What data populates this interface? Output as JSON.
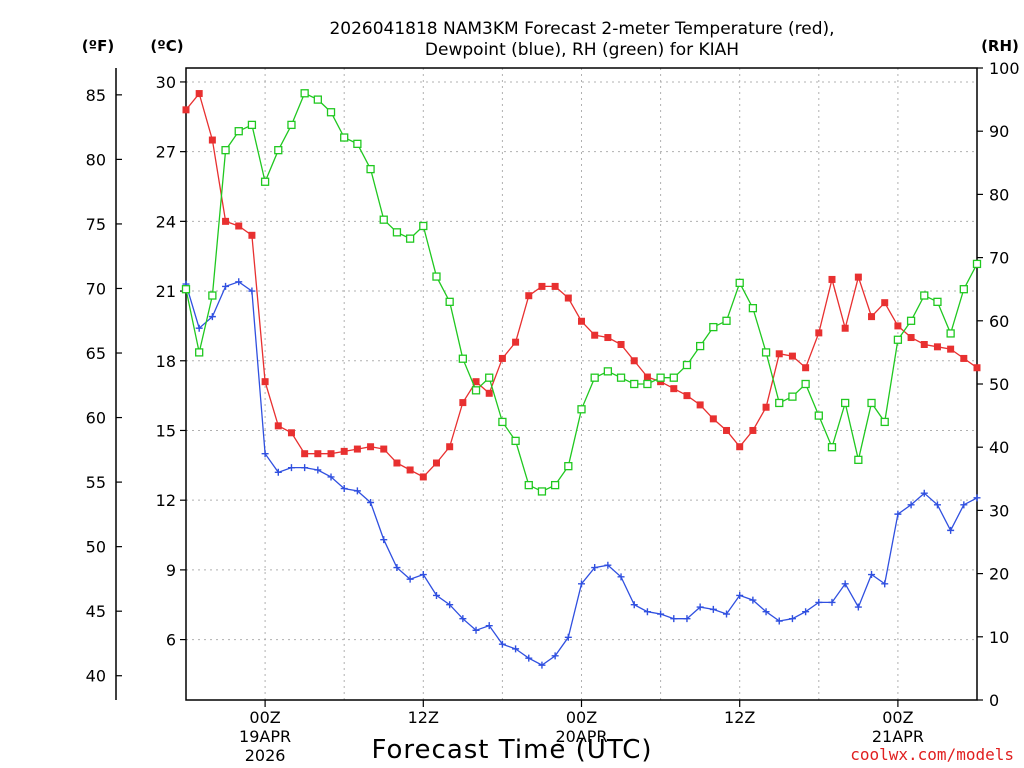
{
  "chart_data": {
    "type": "line",
    "title_line1": "2026041818 NAM3KM Forecast 2-meter Temperature (red),",
    "title_line2": "Dewpoint (blue), RH (green) for KIAH",
    "xlabel": "Forecast Time (UTC)",
    "watermark": "coolwx.com/models",
    "unit_f": "(ºF)",
    "unit_c": "(ºC)",
    "unit_rh": "(RH)",
    "temp_c_range": [
      3.4,
      30.6
    ],
    "rh_range": [
      0,
      100
    ],
    "x_range_hours": [
      0,
      60
    ],
    "c_ticks": [
      "30",
      "27",
      "24",
      "21",
      "18",
      "15",
      "12",
      "9",
      "6"
    ],
    "f_ticks": [
      "85",
      "80",
      "75",
      "70",
      "65",
      "60",
      "55",
      "50",
      "45",
      "40"
    ],
    "rh_ticks": [
      "100",
      "90",
      "80",
      "70",
      "60",
      "50",
      "40",
      "30",
      "20",
      "10",
      "0"
    ],
    "x_ticks": [
      {
        "hour": 6,
        "line1": "00Z",
        "line2": "19APR",
        "line3": "2026"
      },
      {
        "hour": 18,
        "line1": "12Z",
        "line2": "",
        "line3": ""
      },
      {
        "hour": 30,
        "line1": "00Z",
        "line2": "20APR",
        "line3": ""
      },
      {
        "hour": 42,
        "line1": "12Z",
        "line2": "",
        "line3": ""
      },
      {
        "hour": 54,
        "line1": "00Z",
        "line2": "21APR",
        "line3": ""
      }
    ],
    "series": [
      {
        "name": "2-meter Temperature",
        "color": "#e83030",
        "axis": "c",
        "marker": "square-filled",
        "values": [
          28.8,
          29.5,
          27.5,
          24.0,
          23.8,
          23.4,
          17.1,
          15.2,
          14.9,
          14.0,
          14.0,
          14.0,
          14.1,
          14.2,
          14.3,
          14.2,
          13.6,
          13.3,
          13.0,
          13.6,
          14.3,
          16.2,
          17.1,
          16.6,
          18.1,
          18.8,
          20.8,
          21.2,
          21.2,
          20.7,
          19.7,
          19.1,
          19.0,
          18.7,
          18.0,
          17.3,
          17.1,
          16.8,
          16.5,
          16.1,
          15.5,
          15.0,
          14.3,
          15.0,
          16.0,
          18.3,
          18.2,
          17.7,
          19.2,
          21.5,
          19.4,
          21.6,
          19.9,
          20.5,
          19.5,
          19.0,
          18.7,
          18.6,
          18.5,
          18.1,
          17.7
        ]
      },
      {
        "name": "Dewpoint",
        "color": "#3050e0",
        "axis": "c",
        "marker": "plus",
        "values": [
          21.3,
          19.4,
          19.9,
          21.2,
          21.4,
          21.0,
          14.0,
          13.2,
          13.4,
          13.4,
          13.3,
          13.0,
          12.5,
          12.4,
          11.9,
          10.3,
          9.1,
          8.6,
          8.8,
          7.9,
          7.5,
          6.9,
          6.4,
          6.6,
          5.8,
          5.6,
          5.2,
          4.9,
          5.3,
          6.1,
          8.4,
          9.1,
          9.2,
          8.7,
          7.5,
          7.2,
          7.1,
          6.9,
          6.9,
          7.4,
          7.3,
          7.1,
          7.9,
          7.7,
          7.2,
          6.8,
          6.9,
          7.2,
          7.6,
          7.6,
          8.4,
          7.4,
          8.8,
          8.4,
          11.4,
          11.8,
          12.3,
          11.8,
          10.7,
          11.8,
          12.1
        ]
      },
      {
        "name": "RH",
        "color": "#20c820",
        "axis": "rh",
        "marker": "square-open",
        "values": [
          65,
          55,
          64,
          87,
          90,
          91,
          82,
          87,
          91,
          96,
          95,
          93,
          89,
          88,
          84,
          76,
          74,
          73,
          75,
          67,
          63,
          54,
          49,
          51,
          44,
          41,
          34,
          33,
          34,
          37,
          46,
          51,
          52,
          51,
          50,
          50,
          51,
          51,
          53,
          56,
          59,
          60,
          66,
          62,
          55,
          47,
          48,
          50,
          45,
          40,
          47,
          38,
          47,
          44,
          57,
          60,
          64,
          63,
          58,
          65,
          69
        ]
      }
    ]
  }
}
